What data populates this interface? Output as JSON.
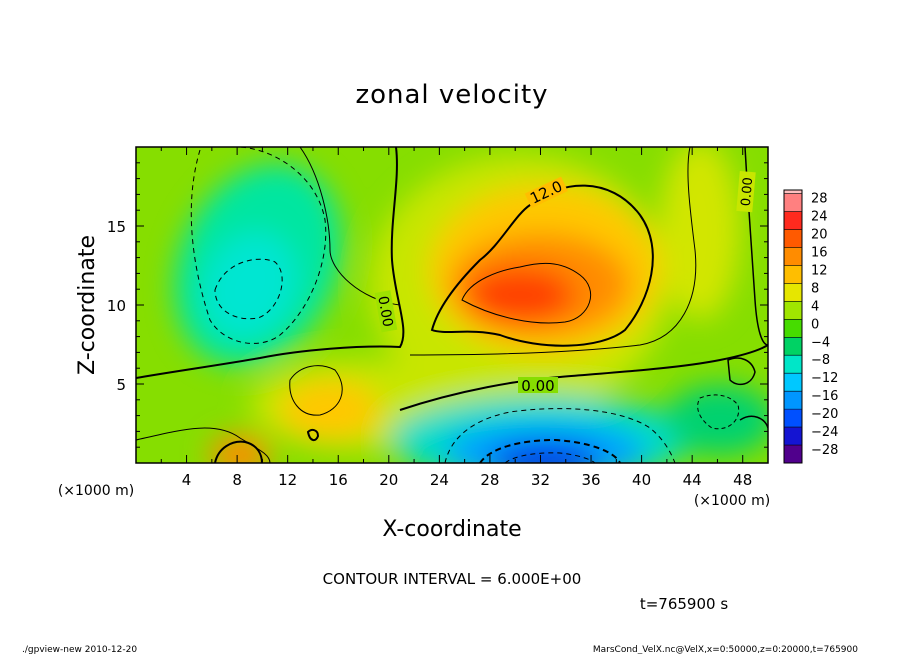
{
  "chart_data": {
    "type": "heatmap",
    "title": "zonal velocity",
    "xlabel": "X-coordinate",
    "ylabel": "Z-coordinate",
    "x_unit_left": "(×1000 m)",
    "x_unit_right": "(×1000 m)",
    "xlim": [
      0,
      50
    ],
    "ylim": [
      0,
      20
    ],
    "x_ticks": [
      "4",
      "8",
      "12",
      "16",
      "20",
      "24",
      "28",
      "32",
      "36",
      "40",
      "44",
      "48"
    ],
    "x_tick_values": [
      4,
      8,
      12,
      16,
      20,
      24,
      28,
      32,
      36,
      40,
      44,
      48
    ],
    "y_ticks": [
      "5",
      "10",
      "15"
    ],
    "y_tick_values": [
      5,
      10,
      15
    ],
    "colorbar": {
      "labels": [
        "28",
        "24",
        "20",
        "16",
        "12",
        "8",
        "4",
        "0",
        "−4",
        "−8",
        "−12",
        "−16",
        "−20",
        "−24",
        "−28"
      ],
      "levels": [
        28,
        24,
        20,
        16,
        12,
        8,
        4,
        0,
        -4,
        -8,
        -12,
        -16,
        -20,
        -24,
        -28
      ],
      "colors": [
        "#ff8080",
        "#ff2a1e",
        "#ff5a00",
        "#ff8c00",
        "#ffbe00",
        "#e6e600",
        "#a0e600",
        "#46dc00",
        "#00d264",
        "#00e6c8",
        "#00c8ff",
        "#0096ff",
        "#0050ff",
        "#1414d2",
        "#50008c"
      ]
    },
    "features": [
      {
        "name": "positive-max",
        "x": 31,
        "z": 10.5,
        "value": 24
      },
      {
        "name": "positive-surface-left",
        "x": 9,
        "z": 0.5,
        "value": 18
      },
      {
        "name": "negative-min",
        "x": 32,
        "z": 0.5,
        "value": -24
      },
      {
        "name": "negative-upper-left",
        "x": 9,
        "z": 10.5,
        "value": -10
      }
    ],
    "contour_labels": [
      "12.0",
      "0.00",
      "0.00",
      "0.00"
    ],
    "contour_interval_text": "CONTOUR INTERVAL = 6.000E+00"
  },
  "time_text": "t=765900 s",
  "footer_left": "./gpview-new  2010-12-20",
  "footer_right": "MarsCond_VelX.nc@VelX,x=0:50000,z=0:20000,t=765900"
}
